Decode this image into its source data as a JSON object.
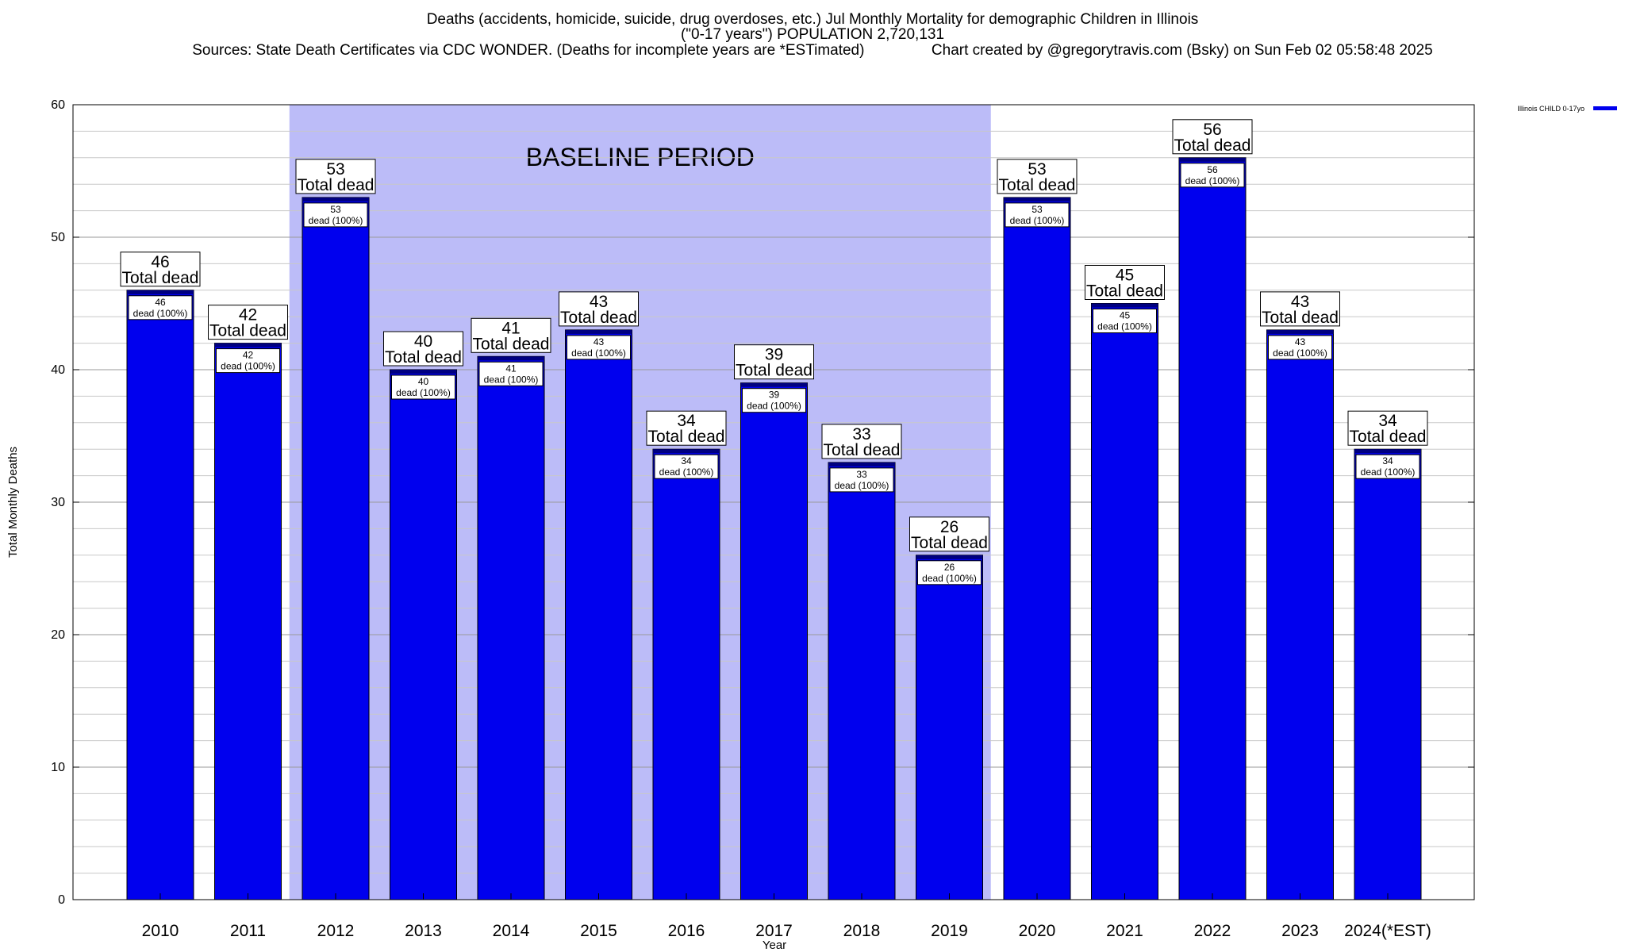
{
  "header": {
    "title_line1": "Deaths (accidents, homicide, suicide, drug overdoses, etc.) Jul Monthly Mortality for demographic Children in Illinois",
    "title_line2": "(\"0-17 years\") POPULATION 2,720,131",
    "title_line3": "Sources: State Death Certificates via CDC WONDER. (Deaths for incomplete years are *ESTimated)                Chart created by @gregorytravis.com (Bsky) on Sun Feb 02 05:58:48 2025"
  },
  "chart_data": {
    "type": "bar",
    "categories": [
      "2010",
      "2011",
      "2012",
      "2013",
      "2014",
      "2015",
      "2016",
      "2017",
      "2018",
      "2019",
      "2020",
      "2021",
      "2022",
      "2023",
      "2024(*EST)"
    ],
    "series": [
      {
        "name": "Illinois CHILD 0-17yo",
        "color": "#0000ee",
        "values": [
          46,
          42,
          53,
          40,
          41,
          43,
          34,
          39,
          33,
          26,
          53,
          45,
          56,
          43,
          34
        ]
      }
    ],
    "total_label_suffix": "Total dead",
    "inner_label_suffix": "dead (100%)",
    "xlabel": "Year",
    "ylabel": "Total Monthly Deaths",
    "ylim": [
      0,
      60
    ],
    "yticks": [
      0,
      10,
      20,
      30,
      40,
      50,
      60
    ],
    "grid": true,
    "legend_position": "top-right, outside plot",
    "baseline_period": {
      "label": "BASELINE PERIOD",
      "from": "2012",
      "to": "2019",
      "color": "#bcbcf8"
    },
    "bar_outline_color": "#000000",
    "bar_top_stripe_color": "#000080"
  }
}
